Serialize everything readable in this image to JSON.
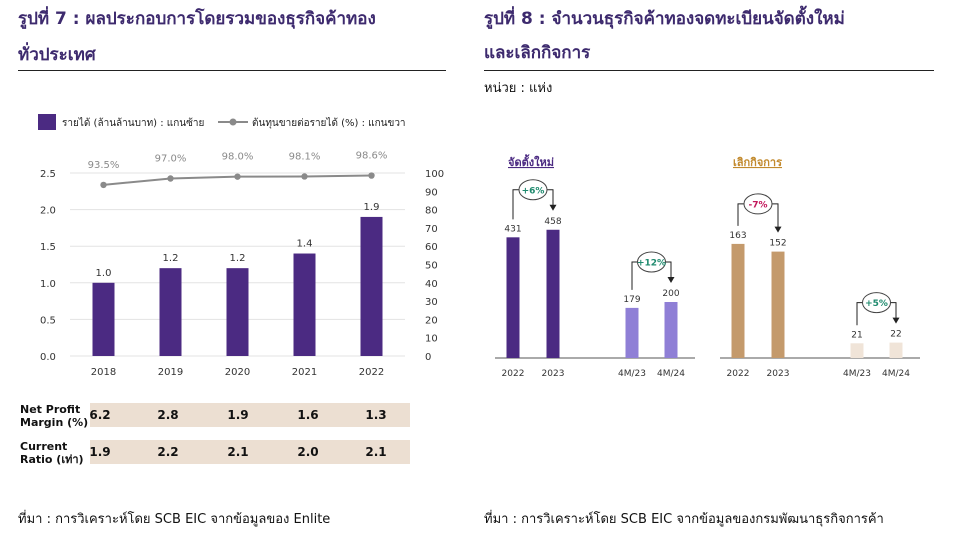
{
  "left_panel": {
    "title_line1": "รูปที่ 7 : ผลประกอบการโดยรวมของธุรกิจค้าทอง",
    "title_line2": "ทั่วประเทศ",
    "source": "ที่มา : การวิเคราะห์โดย SCB EIC จากข้อมูลของ Enlite",
    "table": {
      "rows": [
        {
          "label_line1": "Net Profit",
          "label_line2": "Margin (%)",
          "values": [
            "6.2",
            "2.8",
            "1.9",
            "1.6",
            "1.3"
          ]
        },
        {
          "label_line1": "Current",
          "label_line2": "Ratio (เท่า)",
          "values": [
            "1.9",
            "2.2",
            "2.1",
            "2.0",
            "2.1"
          ]
        }
      ]
    }
  },
  "right_panel": {
    "title_line1": "รูปที่ 8 : จำนวนธุรกิจค้าทองจดทะเบียนจัดตั้งใหม่",
    "title_line2": "และเลิกกิจการ",
    "unit": "หน่วย : แห่ง",
    "source": "ที่มา : การวิเคราะห์โดย SCB EIC จากข้อมูลของกรมพัฒนาธุรกิจการค้า"
  },
  "chart_data": [
    {
      "type": "bar",
      "categories": [
        "2018",
        "2019",
        "2020",
        "2021",
        "2022"
      ],
      "series": [
        {
          "name": "รายได้ (ล้านล้านบาท) : แกนซ้าย",
          "type": "bar",
          "axis": "left",
          "values": [
            1.0,
            1.2,
            1.2,
            1.4,
            1.9
          ],
          "labels": [
            "1.0",
            "1.2",
            "1.2",
            "1.4",
            "1.9"
          ],
          "color": "#4b2a82"
        },
        {
          "name": "ต้นทุนขายต่อรายได้ (%) : แกนขวา",
          "type": "line",
          "axis": "right",
          "values": [
            93.5,
            97.0,
            98.0,
            98.1,
            98.6
          ],
          "labels": [
            "93.5%",
            "97.0%",
            "98.0%",
            "98.1%",
            "98.6%"
          ],
          "color": "#8a8a8a"
        }
      ],
      "ylim_left": [
        0,
        2.5
      ],
      "yticks_left": [
        "0.0",
        "0.5",
        "1.0",
        "1.5",
        "2.0",
        "2.5"
      ],
      "ylim_right": [
        0,
        100
      ],
      "yticks_right": [
        "0",
        "10",
        "20",
        "30",
        "40",
        "50",
        "60",
        "70",
        "80",
        "90",
        "100"
      ],
      "legend_position": "top-left",
      "grid": true
    },
    {
      "type": "bar",
      "title": "จัดตั้งใหม่",
      "categories": [
        "2022",
        "2023",
        "4M/23",
        "4M/24"
      ],
      "values": [
        431,
        458,
        179,
        200
      ],
      "labels": [
        "431",
        "458",
        "179",
        "200"
      ],
      "colors": [
        "#4b2a82",
        "#4b2a82",
        "#8f7fd6",
        "#8f7fd6"
      ],
      "changes": [
        "+6%",
        "+12%"
      ],
      "change_color": "#1f8a6e",
      "title_color": "#4b2a82"
    },
    {
      "type": "bar",
      "title": "เลิกกิจการ",
      "categories": [
        "2022",
        "2023",
        "4M/23",
        "4M/24"
      ],
      "values": [
        163,
        152,
        21,
        22
      ],
      "labels": [
        "163",
        "152",
        "21",
        "22"
      ],
      "colors": [
        "#c49a6c",
        "#c49a6c",
        "#f0e4d8",
        "#f0e4d8"
      ],
      "changes": [
        "-7%",
        "+5%"
      ],
      "change_colors": [
        "#c2185b",
        "#1f8a6e"
      ],
      "title_color": "#c28a2e"
    }
  ]
}
